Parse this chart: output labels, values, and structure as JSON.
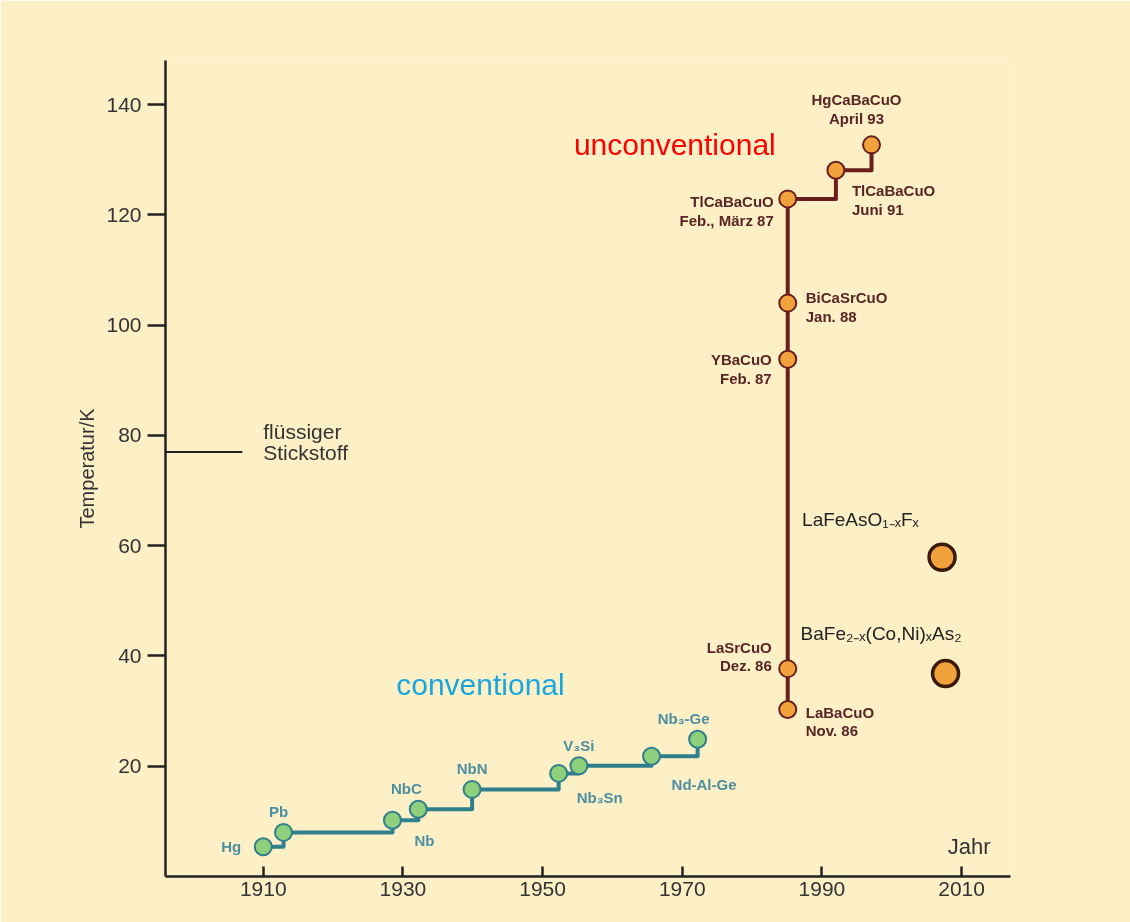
{
  "chart_data": {
    "type": "step",
    "xlabel": "Jahr",
    "ylabel": "Temperatur/K",
    "xlim": [
      1896,
      2017
    ],
    "ylim": [
      0,
      148
    ],
    "xticks": [
      1910,
      1930,
      1950,
      1970,
      1990,
      2010
    ],
    "yticks": [
      20,
      40,
      60,
      80,
      100,
      120,
      140
    ],
    "grid": false,
    "marker": "circle",
    "line_style": "solid",
    "series": [
      {
        "name": "conventional",
        "color": "#2f7f8c",
        "colors": [
          "#8fd07c",
          "#8fd07c",
          "#8fd07c",
          "#8fd07c",
          "#8fd07c",
          "#8fd07c",
          "#8fd07c",
          "#8fd07c",
          "#8fd07c"
        ],
        "x": [
          1910.0,
          1912.9,
          1928.5,
          1932.2,
          1939.9,
          1952.3,
          1955.2,
          1965.6,
          1972.2
        ],
        "values": [
          5.4,
          8.0,
          10.2,
          12.2,
          15.8,
          18.7,
          20.1,
          21.8,
          24.9
        ]
      },
      {
        "name": "unconventional",
        "color": "#6b1e1e",
        "colors": [
          "#f2a23c",
          "#f2a23c",
          "#f2a23c",
          "#f2a23c",
          "#f2a23c",
          "#f2a23c",
          "#f2a23c"
        ],
        "x": [
          1985.1,
          1985.1,
          1985.1,
          1985.1,
          1985.1,
          1992.0,
          1997.1
        ],
        "values": [
          30.3,
          37.7,
          93.8,
          104.0,
          122.9,
          128.1,
          132.7
        ]
      },
      {
        "type": "scatter",
        "color": "#f2a23c",
        "x": [
          2007.2,
          2007.7
        ],
        "values": [
          57.9,
          36.8
        ]
      }
    ],
    "ref_lines": [
      {
        "axis": "y",
        "value": 77,
        "label": "flüssiger\nStickstoff"
      }
    ],
    "annotations": [
      {
        "text": "Hg",
        "x": 1910.0,
        "y": 5.4
      },
      {
        "text": "Pb",
        "x": 1912.9,
        "y": 8.0
      },
      {
        "text": "Nb",
        "x": 1928.5,
        "y": 10.2
      },
      {
        "text": "NbC",
        "x": 1932.2,
        "y": 12.2
      },
      {
        "text": "NbN",
        "x": 1939.9,
        "y": 15.8
      },
      {
        "text": "Nb₃Sn",
        "x": 1952.3,
        "y": 18.7
      },
      {
        "text": "V₃Si",
        "x": 1955.2,
        "y": 20.1
      },
      {
        "text": "Nd-Al-Ge",
        "x": 1965.6,
        "y": 21.8
      },
      {
        "text": "Nb₃-Ge",
        "x": 1972.2,
        "y": 24.9
      },
      {
        "text": "LaBaCuO\nNov. 86",
        "x": 1985.1,
        "y": 30.3
      },
      {
        "text": "LaSrCuO\nDez. 86",
        "x": 1985.1,
        "y": 37.7
      },
      {
        "text": "YBaCuO\nFeb. 87",
        "x": 1985.1,
        "y": 93.8
      },
      {
        "text": "BiCaSrCuO\nJan. 88",
        "x": 1985.1,
        "y": 104.0
      },
      {
        "text": "TlCaBaCuO\nFeb., März 87",
        "x": 1985.1,
        "y": 122.9
      },
      {
        "text": "TlCaBaCuO\nJuni 91",
        "x": 1992.0,
        "y": 128.1
      },
      {
        "text": "HgCaBaCuO\nApril 93",
        "x": 1997.1,
        "y": 132.7
      },
      {
        "text": "LaFeAsO₁₋ₓFₓ",
        "x": 2007.2,
        "y": 57.9
      },
      {
        "text": "BaFe₂₋ₓ(Co,Ni)ₓAs₂",
        "x": 2007.7,
        "y": 36.8
      }
    ]
  }
}
